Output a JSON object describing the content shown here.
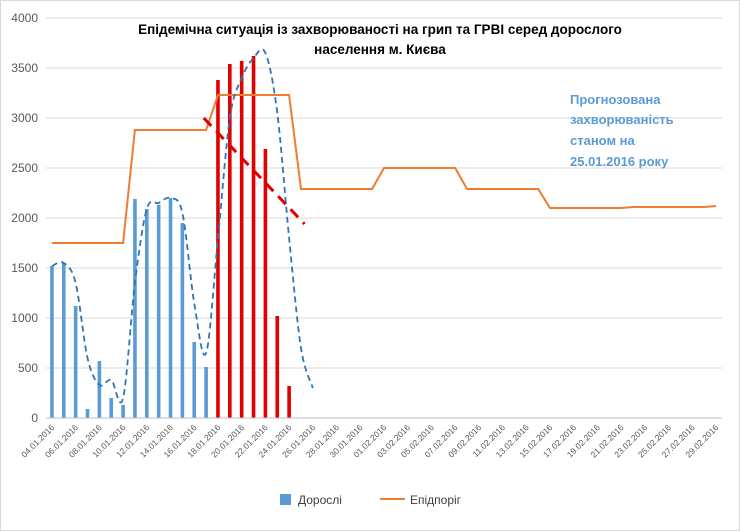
{
  "chart_data": {
    "type": "bar+line",
    "title_lines": [
      "Епідемічна ситуація із захворюваності на грип та ГРВІ серед дорослого",
      "населення м. Києва"
    ],
    "ylim": [
      0,
      4000
    ],
    "yticks": [
      0,
      500,
      1000,
      1500,
      2000,
      2500,
      3000,
      3500,
      4000
    ],
    "x_dates": [
      "04.01.2016",
      "06.01.2016",
      "08.01.2016",
      "10.01.2016",
      "12.01.2016",
      "14.01.2016",
      "16.01.2016",
      "18.01.2016",
      "20.01.2016",
      "22.01.2016",
      "24.01.2016",
      "26.01.2016",
      "28.01.2016",
      "30.01.2016",
      "01.02.2016",
      "03.02.2016",
      "05.02.2016",
      "07.02.2016",
      "09.02.2016",
      "11.02.2016",
      "13.02.2016",
      "15.02.2016",
      "17.02.2016",
      "19.02.2016",
      "21.02.2016",
      "23.02.2016",
      "25.02.2016",
      "27.02.2016",
      "29.02.2016"
    ],
    "series_bars": {
      "name": "Дорослі",
      "color": "#5b9bd5",
      "values": [
        1520,
        1550,
        1120,
        90,
        570,
        200,
        130,
        2190,
        2090,
        2130,
        2200,
        1950,
        760,
        510,
        3380,
        3540,
        3570,
        3620,
        2690,
        1020,
        320
      ],
      "red_from_index": 14
    },
    "series_line": {
      "name": "Епідпоріг",
      "color": "#ed7d31",
      "points": [
        [
          0,
          1750
        ],
        [
          6,
          1750
        ],
        [
          7,
          2880
        ],
        [
          13,
          2880
        ],
        [
          14,
          3230
        ],
        [
          20,
          3230
        ],
        [
          21,
          2290
        ],
        [
          27,
          2290
        ],
        [
          28,
          2500
        ],
        [
          34,
          2500
        ],
        [
          35,
          2290
        ],
        [
          41,
          2290
        ],
        [
          42,
          2100
        ],
        [
          48,
          2100
        ],
        [
          49,
          2110
        ],
        [
          55,
          2110
        ],
        [
          56,
          2120
        ]
      ]
    },
    "trend_dashed": {
      "color": "#2e75b6",
      "points": [
        [
          0,
          1520
        ],
        [
          1,
          1550
        ],
        [
          2,
          1350
        ],
        [
          3,
          600
        ],
        [
          4,
          330
        ],
        [
          5,
          380
        ],
        [
          6,
          200
        ],
        [
          7,
          1350
        ],
        [
          8,
          2090
        ],
        [
          9,
          2150
        ],
        [
          10,
          2200
        ],
        [
          11,
          2050
        ],
        [
          12,
          1150
        ],
        [
          13,
          650
        ],
        [
          14,
          1800
        ],
        [
          15,
          3000
        ],
        [
          16,
          3400
        ],
        [
          17,
          3600
        ],
        [
          18,
          3650
        ],
        [
          19,
          3050
        ],
        [
          20,
          1800
        ],
        [
          21,
          700
        ],
        [
          22,
          300
        ]
      ]
    },
    "forecast_dashed": {
      "color": "#e00000",
      "points": [
        [
          12.8,
          3000
        ],
        [
          21.3,
          1940
        ]
      ]
    },
    "annotation_lines": [
      "Прогнозована",
      "захворюваність",
      "станом на",
      "25.01.2016 року"
    ],
    "legend": [
      "Дорослі",
      "Епідпоріг"
    ],
    "legend_position": "bottom"
  }
}
